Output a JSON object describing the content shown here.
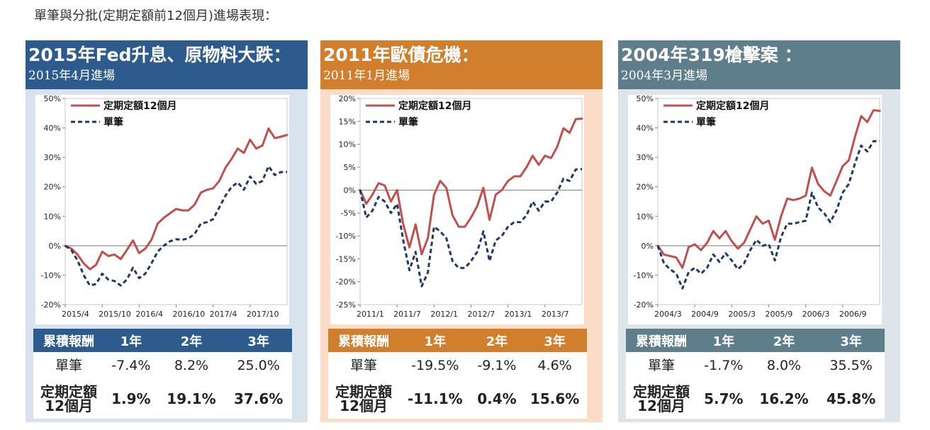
{
  "page_title": "單筆與分批(定期定額前12個月)進場表現：",
  "colors": {
    "dca_line": "#c0504d",
    "lump_line": "#1f3864"
  },
  "table_headers": [
    "累積報酬",
    "1年",
    "2年",
    "3年"
  ],
  "row_labels": {
    "lump": "單筆",
    "dca_line1": "定期定額",
    "dca_line2": "12個月"
  },
  "panels": [
    {
      "title": "2015年Fed升息、原物料大跌：",
      "subtitle": "2015年4月進場",
      "header_color": "#2e5b8e",
      "bg_color": "#d9e3ee",
      "returns": {
        "lump": [
          "-7.4%",
          "8.2%",
          "25.0%"
        ],
        "dca": [
          "1.9%",
          "19.1%",
          "37.6%"
        ]
      }
    },
    {
      "title": "2011年歐債危機：",
      "subtitle": "2011年1月進場",
      "header_color": "#d17f2d",
      "bg_color": "#fbdcc7",
      "returns": {
        "lump": [
          "-19.5%",
          "-9.1%",
          "4.6%"
        ],
        "dca": [
          "-11.1%",
          "0.4%",
          "15.6%"
        ]
      }
    },
    {
      "title": "2004年319槍擊案 ：",
      "subtitle": "2004年3月進場",
      "header_color": "#5f7e8b",
      "bg_color": "#dde5ea",
      "returns": {
        "lump": [
          "-1.7%",
          "8.0%",
          "35.5%"
        ],
        "dca": [
          "5.7%",
          "16.2%",
          "45.8%"
        ]
      }
    }
  ],
  "chart_data": [
    {
      "type": "line",
      "ylim": [
        -20,
        50
      ],
      "yticks": [
        -20,
        -10,
        0,
        10,
        20,
        30,
        40,
        50
      ],
      "ytick_labels": [
        "-20%",
        "-10%",
        "0%",
        "10%",
        "20%",
        "30%",
        "40%",
        "50%"
      ],
      "x": [
        0,
        1,
        2,
        3,
        4,
        5,
        6,
        7,
        8,
        9,
        10,
        11,
        12,
        13,
        14,
        15,
        16,
        17,
        18,
        19,
        20,
        21,
        22,
        23,
        24,
        25,
        26,
        27,
        28,
        29,
        30,
        31,
        32,
        33,
        34,
        35,
        36
      ],
      "xlim": [
        0,
        36
      ],
      "xtick_labels": [
        "2015/4",
        "2015/10",
        "2016/4",
        "2016/10",
        "2017/4",
        "2017/10"
      ],
      "xtick_positions": [
        0,
        6,
        12,
        18,
        24,
        30
      ],
      "legend_position": "top-left",
      "series": [
        {
          "name": "定期定額12個月",
          "style": "solid",
          "values": [
            0,
            -1,
            -3,
            -6,
            -8,
            -6.5,
            -2,
            -3.5,
            -3,
            -4.5,
            -1.5,
            1.8,
            -2.5,
            -1,
            2,
            7.5,
            9.5,
            11,
            12.5,
            12,
            12,
            14,
            18,
            19,
            19.5,
            22,
            26.5,
            29.5,
            33,
            31.5,
            36,
            33,
            34,
            39.8,
            36.5,
            37,
            37.6
          ]
        },
        {
          "name": "單筆",
          "style": "dashed",
          "values": [
            0,
            -1.5,
            -5,
            -10,
            -13.5,
            -13,
            -9.5,
            -11.5,
            -12,
            -13.5,
            -11.5,
            -7.5,
            -11,
            -9.5,
            -6,
            -2,
            0,
            1.5,
            2.2,
            2,
            2.5,
            4,
            7.5,
            8,
            9,
            13,
            17,
            20,
            21.5,
            19,
            23.5,
            21,
            22,
            27,
            24,
            25,
            25
          ]
        }
      ]
    },
    {
      "type": "line",
      "ylim": [
        -25,
        20
      ],
      "yticks": [
        -25,
        -20,
        -15,
        -10,
        -5,
        0,
        5,
        10,
        15,
        20
      ],
      "ytick_labels": [
        "-25%",
        "-20%",
        "-15%",
        "-10%",
        "-5%",
        "0%",
        "5%",
        "10%",
        "15%",
        "20%"
      ],
      "x": [
        0,
        1,
        2,
        3,
        4,
        5,
        6,
        7,
        8,
        9,
        10,
        11,
        12,
        13,
        14,
        15,
        16,
        17,
        18,
        19,
        20,
        21,
        22,
        23,
        24,
        25,
        26,
        27,
        28,
        29,
        30,
        31,
        32,
        33,
        34,
        35,
        36
      ],
      "xlim": [
        0,
        36
      ],
      "xtick_labels": [
        "2011/1",
        "2011/7",
        "2012/1",
        "2012/7",
        "2013/1",
        "2013/7"
      ],
      "xtick_positions": [
        0,
        6,
        12,
        18,
        24,
        30
      ],
      "legend_position": "top-left",
      "series": [
        {
          "name": "定期定額12個月",
          "style": "solid",
          "values": [
            0,
            -3,
            -1,
            1.5,
            1,
            -2.5,
            0,
            -7.5,
            -12.5,
            -7.5,
            -14,
            -10.5,
            -1,
            2,
            0.5,
            -5.5,
            -8,
            -8,
            -6,
            -3.5,
            0.5,
            -6.5,
            -1,
            0,
            2,
            3,
            3,
            5,
            7.5,
            5.5,
            7.5,
            7,
            9.5,
            13.5,
            12.5,
            15.5,
            15.6
          ]
        },
        {
          "name": "單筆",
          "style": "dashed",
          "values": [
            0,
            -6,
            -4.5,
            -1.5,
            -2.5,
            -5,
            -3,
            -11,
            -17.5,
            -13.5,
            -21,
            -18,
            -8,
            -9,
            -10.5,
            -15.5,
            -17,
            -17,
            -15.5,
            -13.5,
            -9,
            -15.5,
            -11,
            -10,
            -8,
            -7,
            -7,
            -5.5,
            -2.5,
            -4.5,
            -2.5,
            -2.5,
            -0.5,
            2.5,
            2,
            4.5,
            4.6
          ]
        }
      ]
    },
    {
      "type": "line",
      "ylim": [
        -20,
        50
      ],
      "yticks": [
        -20,
        -10,
        0,
        10,
        20,
        30,
        40,
        50
      ],
      "ytick_labels": [
        "-20%",
        "-10%",
        "0%",
        "10%",
        "20%",
        "30%",
        "40%",
        "50%"
      ],
      "x": [
        0,
        1,
        2,
        3,
        4,
        5,
        6,
        7,
        8,
        9,
        10,
        11,
        12,
        13,
        14,
        15,
        16,
        17,
        18,
        19,
        20,
        21,
        22,
        23,
        24,
        25,
        26,
        27,
        28,
        29,
        30,
        31,
        32,
        33,
        34,
        35,
        36
      ],
      "xlim": [
        0,
        36
      ],
      "xtick_labels": [
        "2004/3",
        "2004/9",
        "2005/3",
        "2005/9",
        "2006/3",
        "2006/9"
      ],
      "xtick_positions": [
        0,
        6,
        12,
        18,
        24,
        30
      ],
      "legend_position": "top-left",
      "series": [
        {
          "name": "定期定額12個月",
          "style": "solid",
          "values": [
            0,
            -3,
            -3.5,
            -4,
            -7.5,
            -0.5,
            0.5,
            -1.5,
            1,
            5,
            2.5,
            5,
            1.5,
            -1,
            1,
            5.5,
            10,
            7.5,
            8.5,
            2,
            10,
            16,
            15.5,
            16,
            17,
            26.5,
            21,
            18.5,
            17,
            22,
            27,
            29,
            37,
            44,
            42,
            46,
            45.8
          ]
        },
        {
          "name": "單筆",
          "style": "dashed",
          "values": [
            0,
            -6,
            -8,
            -9.5,
            -14.5,
            -9,
            -7.5,
            -9.5,
            -7.5,
            -3,
            -5.5,
            -2.5,
            -5,
            -8,
            -6,
            -1.5,
            2,
            0,
            0.5,
            -5,
            3,
            7.5,
            7.5,
            8,
            8.5,
            18,
            13,
            11,
            8,
            12,
            18,
            21,
            28,
            34,
            32,
            35.5,
            35.5
          ]
        }
      ]
    }
  ]
}
